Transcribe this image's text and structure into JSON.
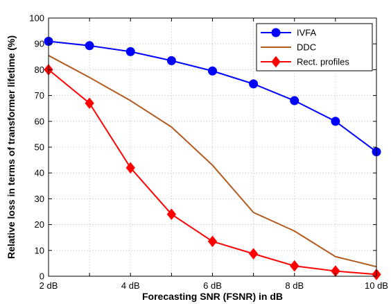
{
  "chart_data": {
    "type": "line",
    "xlabel": "Forecasting SNR (FSNR) in dB",
    "ylabel": "Relative loss in terms of transformer lifetime (%)",
    "xlim": [
      2,
      10
    ],
    "ylim": [
      0,
      100
    ],
    "x": [
      2,
      3,
      4,
      5,
      6,
      7,
      8,
      9,
      10
    ],
    "x_tick_labels": [
      "2 dB",
      "4 dB",
      "6 dB",
      "8 dB",
      "10 dB"
    ],
    "x_tick_values": [
      2,
      4,
      6,
      8,
      10
    ],
    "y_ticks": [
      0,
      10,
      20,
      30,
      40,
      50,
      60,
      70,
      80,
      90,
      100
    ],
    "grid": true,
    "legend_position": "top-right",
    "series": [
      {
        "name": "IVFA",
        "color": "#0000ff",
        "marker": "circle",
        "values": [
          91,
          89.3,
          87,
          83.5,
          79.5,
          74.5,
          68,
          60,
          48.2
        ]
      },
      {
        "name": "DDC",
        "color": "#b35a1f",
        "marker": "none",
        "values": [
          85.5,
          77,
          68,
          57.8,
          43,
          24.7,
          17.5,
          7.6,
          3.7
        ]
      },
      {
        "name": "Rect. profiles",
        "color": "#ff0000",
        "marker": "diamond",
        "values": [
          80,
          67,
          42,
          24,
          13.5,
          8.7,
          4,
          2,
          0.7
        ]
      }
    ]
  }
}
